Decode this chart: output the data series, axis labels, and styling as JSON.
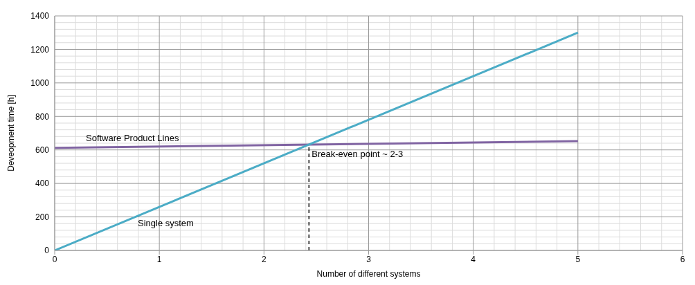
{
  "chart_data": {
    "type": "line",
    "xlabel": "Number of different systems",
    "ylabel": "Deveopment time [h]",
    "xlim": [
      0,
      6
    ],
    "xticks": [
      0,
      1,
      2,
      3,
      4,
      5,
      6
    ],
    "ylim": [
      0,
      1400
    ],
    "yticks": [
      0,
      200,
      400,
      600,
      800,
      1000,
      1200,
      1400
    ],
    "grid": true,
    "legend": false,
    "marker": "none",
    "line_style": "solid",
    "x": [
      0,
      5
    ],
    "series": [
      {
        "name": "Software Product Lines",
        "color": "#8064a2",
        "values": [
          612,
          652
        ]
      },
      {
        "name": "Single system",
        "color": "#4bacc6",
        "values": [
          0,
          1300
        ]
      }
    ],
    "ref_lines": [
      {
        "axis": "x",
        "value": 2.43,
        "label": "Break-even point ~ 2-3",
        "color": "#000000",
        "line_style": "dashed"
      }
    ]
  }
}
